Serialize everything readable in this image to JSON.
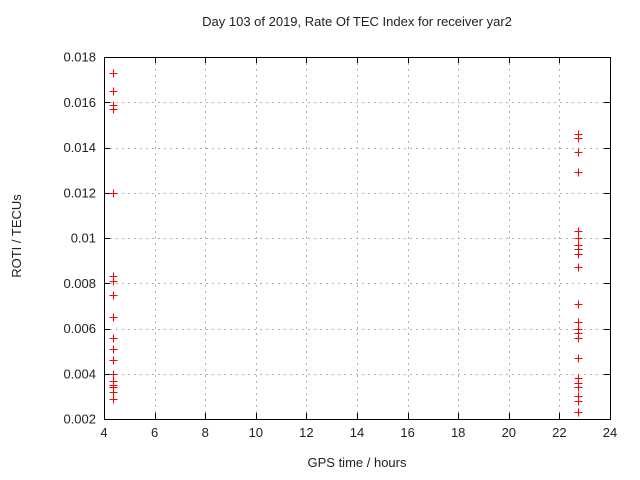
{
  "chart_data": {
    "type": "scatter",
    "title": "Day 103 of 2019, Rate Of TEC Index for receiver yar2",
    "xlabel": "GPS time / hours",
    "ylabel": "ROTI / TECUs",
    "xlim": [
      4,
      24
    ],
    "ylim": [
      0.002,
      0.018
    ],
    "grid": true,
    "legend": "none",
    "x_tick_values": [
      4,
      6,
      8,
      10,
      12,
      14,
      16,
      18,
      20,
      22,
      24
    ],
    "x_tick_labels": [
      "4",
      "6",
      "8",
      "10",
      "12",
      "14",
      "16",
      "18",
      "20",
      "22",
      "24"
    ],
    "y_tick_values": [
      0.002,
      0.004,
      0.006,
      0.008,
      0.01,
      0.012,
      0.014,
      0.016,
      0.018
    ],
    "y_tick_labels": [
      "0.002",
      "0.004",
      "0.006",
      "0.008",
      "0.01",
      "0.012",
      "0.014",
      "0.016",
      "0.018"
    ],
    "colors": {
      "marker": "#ff0000",
      "grid": "#b0b0b0",
      "axis": "#000000",
      "text": "#222222",
      "background": "#ffffff"
    },
    "series": [
      {
        "name": "ROTI",
        "marker": "plus",
        "color": "#ff0000",
        "points": [
          [
            4.35,
            0.0173
          ],
          [
            4.35,
            0.0165
          ],
          [
            4.35,
            0.0159
          ],
          [
            4.35,
            0.0157
          ],
          [
            4.35,
            0.012
          ],
          [
            4.35,
            0.0083
          ],
          [
            4.35,
            0.0081
          ],
          [
            4.35,
            0.0075
          ],
          [
            4.35,
            0.0065
          ],
          [
            4.35,
            0.0056
          ],
          [
            4.35,
            0.0051
          ],
          [
            4.35,
            0.0046
          ],
          [
            4.35,
            0.004
          ],
          [
            4.35,
            0.0037
          ],
          [
            4.35,
            0.0035
          ],
          [
            4.35,
            0.0034
          ],
          [
            4.35,
            0.0032
          ],
          [
            4.35,
            0.0029
          ],
          [
            22.73,
            0.0146
          ],
          [
            22.73,
            0.0144
          ],
          [
            22.73,
            0.0138
          ],
          [
            22.73,
            0.0129
          ],
          [
            22.73,
            0.0103
          ],
          [
            22.73,
            0.01
          ],
          [
            22.73,
            0.0097
          ],
          [
            22.73,
            0.0095
          ],
          [
            22.73,
            0.0093
          ],
          [
            22.73,
            0.0087
          ],
          [
            22.73,
            0.0071
          ],
          [
            22.73,
            0.0063
          ],
          [
            22.73,
            0.006
          ],
          [
            22.73,
            0.0058
          ],
          [
            22.73,
            0.0056
          ],
          [
            22.73,
            0.0047
          ],
          [
            22.73,
            0.0038
          ],
          [
            22.73,
            0.0036
          ],
          [
            22.73,
            0.0034
          ],
          [
            22.73,
            0.003
          ],
          [
            22.73,
            0.0028
          ],
          [
            22.73,
            0.0023
          ]
        ]
      }
    ]
  }
}
